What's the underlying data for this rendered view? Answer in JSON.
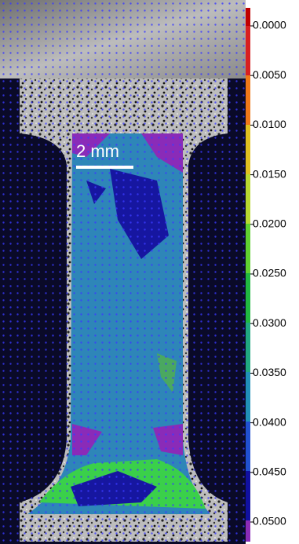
{
  "scale_bar": {
    "label": "2 mm"
  },
  "colorbar": {
    "ticks": [
      {
        "value": 0,
        "label": "0.0000"
      },
      {
        "value": 0.005,
        "label": "0.0050"
      },
      {
        "value": 0.01,
        "label": "0.0100"
      },
      {
        "value": 0.015,
        "label": "0.0150"
      },
      {
        "value": 0.02,
        "label": "0.0200"
      },
      {
        "value": 0.025,
        "label": "0.0250"
      },
      {
        "value": 0.03,
        "label": "0.0300"
      },
      {
        "value": 0.035,
        "label": "0.0350"
      },
      {
        "value": 0.04,
        "label": "0.0400"
      },
      {
        "value": 0.045,
        "label": "0.0450"
      },
      {
        "value": 0.05,
        "label": "0.0500"
      }
    ]
  }
}
